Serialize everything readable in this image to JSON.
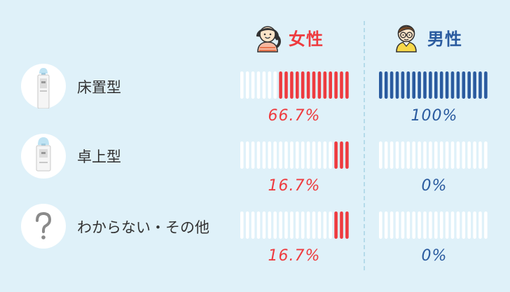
{
  "colors": {
    "background": "#dff1f9",
    "female": "#ee3b3f",
    "male": "#2a5b9f",
    "empty_bar": "#ffffff",
    "label_text": "#333333"
  },
  "headers": {
    "female_label": "女性",
    "male_label": "男性",
    "female_icon": "girl-avatar-icon",
    "male_icon": "boy-with-glasses-avatar-icon"
  },
  "rows": [
    {
      "label": "床置型",
      "icon": "floor-water-cooler-icon"
    },
    {
      "label": "卓上型",
      "icon": "tabletop-water-cooler-icon"
    },
    {
      "label": "わからない・その他",
      "icon": "question-mark-icon"
    }
  ],
  "chart_data": {
    "type": "bar",
    "categories": [
      "床置型",
      "卓上型",
      "わからない・その他"
    ],
    "series": [
      {
        "name": "女性",
        "values": [
          66.7,
          16.7,
          16.7
        ],
        "labels": [
          "66.7%",
          "16.7%",
          "16.7%"
        ]
      },
      {
        "name": "男性",
        "values": [
          100,
          0,
          0
        ],
        "labels": [
          "100%",
          "0%",
          "0%"
        ]
      }
    ],
    "ylim": [
      0,
      100
    ]
  }
}
